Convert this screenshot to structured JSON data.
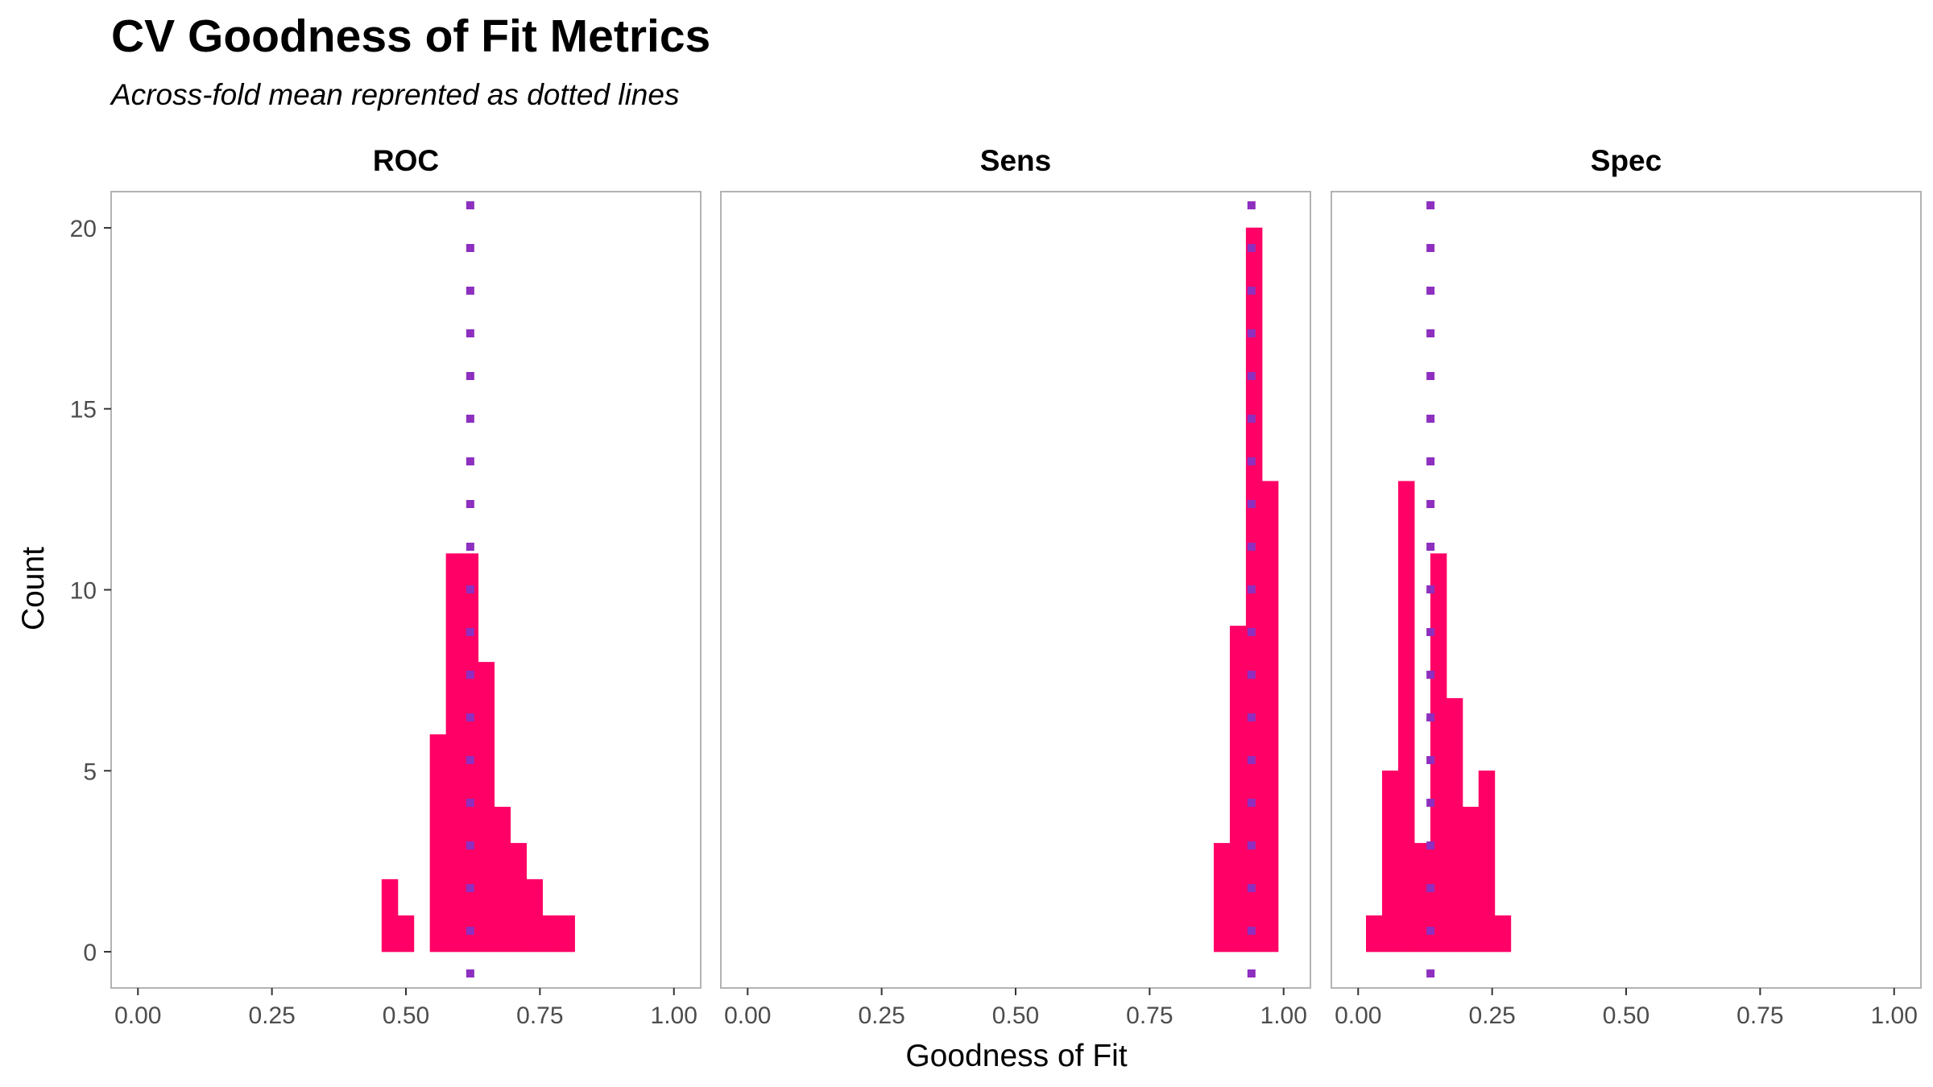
{
  "chart_data": {
    "type": "bar",
    "title": "CV Goodness of Fit Metrics",
    "subtitle": "Across-fold mean reprented as dotted lines",
    "xlabel": "Goodness of Fit",
    "ylabel": "Count",
    "xlim": [
      -0.05,
      1.05
    ],
    "ylim": [
      -1,
      21
    ],
    "xticks": [
      0,
      0.25,
      0.5,
      0.75,
      1
    ],
    "xtick_labels": [
      "0.00",
      "0.25",
      "0.50",
      "0.75",
      "1.00"
    ],
    "yticks": [
      0,
      5,
      10,
      15,
      20
    ],
    "ytick_labels": [
      "0",
      "5",
      "10",
      "15",
      "20"
    ],
    "grid": false,
    "bar_color": "#FF0066",
    "mean_line_color": "#8E2FBF",
    "bin_width": 0.03,
    "panels": [
      {
        "name": "ROC",
        "mean": 0.62,
        "bins": [
          {
            "x": 0.47,
            "count": 2
          },
          {
            "x": 0.5,
            "count": 1
          },
          {
            "x": 0.56,
            "count": 6
          },
          {
            "x": 0.59,
            "count": 11
          },
          {
            "x": 0.62,
            "count": 11
          },
          {
            "x": 0.65,
            "count": 8
          },
          {
            "x": 0.68,
            "count": 4
          },
          {
            "x": 0.71,
            "count": 3
          },
          {
            "x": 0.74,
            "count": 2
          },
          {
            "x": 0.77,
            "count": 1
          },
          {
            "x": 0.8,
            "count": 1
          }
        ]
      },
      {
        "name": "Sens",
        "mean": 0.94,
        "bins": [
          {
            "x": 0.885,
            "count": 3
          },
          {
            "x": 0.915,
            "count": 9
          },
          {
            "x": 0.945,
            "count": 20
          },
          {
            "x": 0.975,
            "count": 13
          }
        ]
      },
      {
        "name": "Spec",
        "mean": 0.135,
        "bins": [
          {
            "x": 0.03,
            "count": 1
          },
          {
            "x": 0.06,
            "count": 5
          },
          {
            "x": 0.09,
            "count": 13
          },
          {
            "x": 0.12,
            "count": 3
          },
          {
            "x": 0.15,
            "count": 11
          },
          {
            "x": 0.18,
            "count": 7
          },
          {
            "x": 0.21,
            "count": 4
          },
          {
            "x": 0.24,
            "count": 5
          },
          {
            "x": 0.27,
            "count": 1
          }
        ]
      }
    ]
  }
}
